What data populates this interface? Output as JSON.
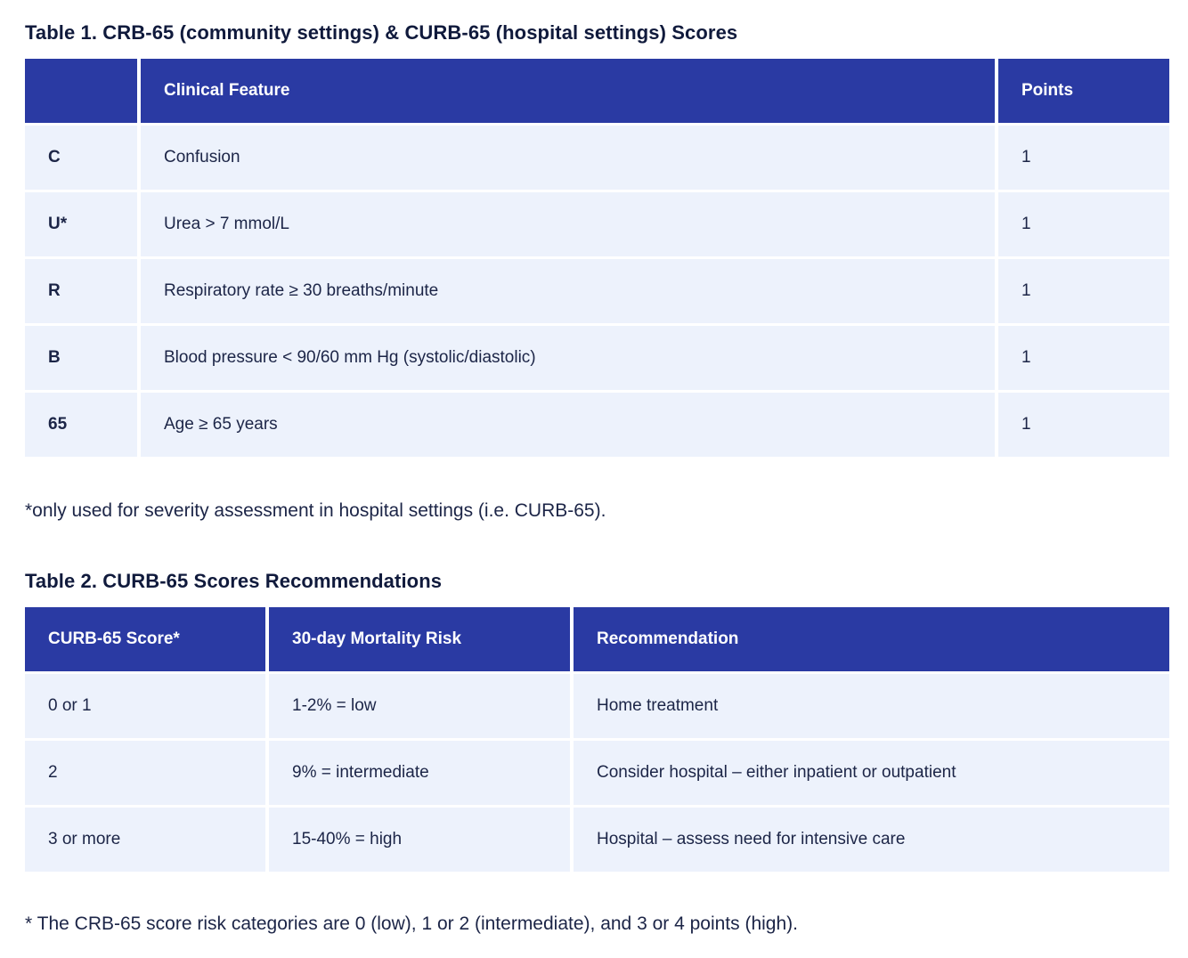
{
  "colors": {
    "header_bg": "#2a3aa3",
    "row_bg": "#edf2fc",
    "title_text": "#101a3c",
    "body_text": "#1c2547"
  },
  "table1": {
    "title": "Table 1. CRB-65 (community settings) & CURB-65 (hospital settings) Scores",
    "headers": [
      "",
      "Clinical Feature",
      "Points"
    ],
    "rows": [
      {
        "key": "C",
        "feature": "Confusion",
        "points": "1"
      },
      {
        "key": "U*",
        "feature": "Urea > 7 mmol/L",
        "points": "1"
      },
      {
        "key": "R",
        "feature": "Respiratory rate ≥ 30 breaths/minute",
        "points": "1"
      },
      {
        "key": "B",
        "feature": "Blood pressure < 90/60 mm Hg (systolic/diastolic)",
        "points": "1"
      },
      {
        "key": "65",
        "feature": "Age ≥ 65 years",
        "points": "1"
      }
    ],
    "footnote": "*only used for severity assessment in hospital settings (i.e. CURB-65)."
  },
  "table2": {
    "title": "Table 2. CURB-65 Scores Recommendations",
    "headers": [
      "CURB-65 Score*",
      "30-day Mortality Risk",
      "Recommendation"
    ],
    "rows": [
      {
        "score": "0 or 1",
        "risk": "1-2% = low",
        "recommendation": "Home treatment"
      },
      {
        "score": "2",
        "risk": "9% = intermediate",
        "recommendation": "Consider hospital – either inpatient or outpatient"
      },
      {
        "score": "3 or more",
        "risk": "15-40% = high",
        "recommendation": "Hospital – assess need for intensive care"
      }
    ],
    "footnote": "* The CRB-65 score risk categories are 0 (low), 1 or 2 (intermediate), and 3 or 4 points (high)."
  }
}
